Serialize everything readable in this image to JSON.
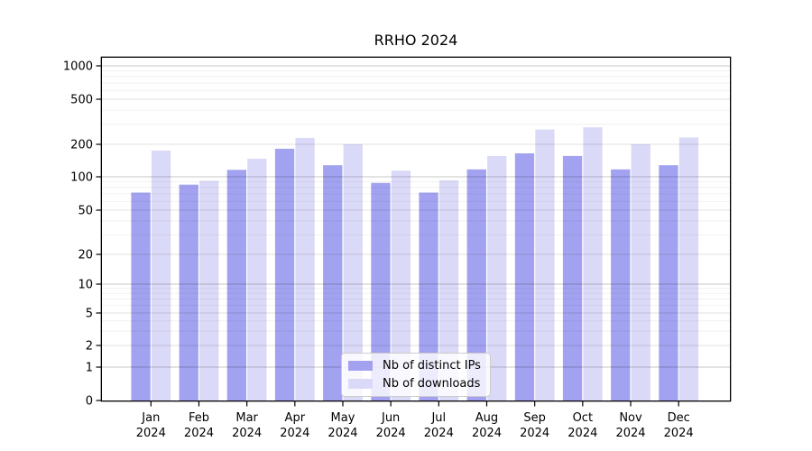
{
  "figure": {
    "background": "#ffffff"
  },
  "chart_data": {
    "type": "bar",
    "title": "RRHO 2024",
    "categories": [
      "Jan 2024",
      "Feb 2024",
      "Mar 2024",
      "Apr 2024",
      "May 2024",
      "Jun 2024",
      "Jul 2024",
      "Aug 2024",
      "Sep 2024",
      "Oct 2024",
      "Nov 2024",
      "Dec 2024"
    ],
    "series": [
      {
        "name": "Nb of distinct IPs",
        "color": "#a2a2f0",
        "values": [
          72,
          85,
          116,
          182,
          128,
          88,
          72,
          117,
          165,
          156,
          117,
          128
        ]
      },
      {
        "name": "Nb of downloads",
        "color": "#dadaf8",
        "values": [
          175,
          92,
          147,
          228,
          200,
          114,
          93,
          156,
          270,
          283,
          200,
          230
        ]
      }
    ],
    "xlabel": "",
    "ylabel": "",
    "y_axis": {
      "scale": "symlog",
      "ticks": [
        0,
        1,
        2,
        5,
        10,
        20,
        50,
        100,
        200,
        500,
        1000
      ],
      "ylim": [
        0,
        1200
      ]
    },
    "grid": true,
    "legend_position": "lower center"
  }
}
